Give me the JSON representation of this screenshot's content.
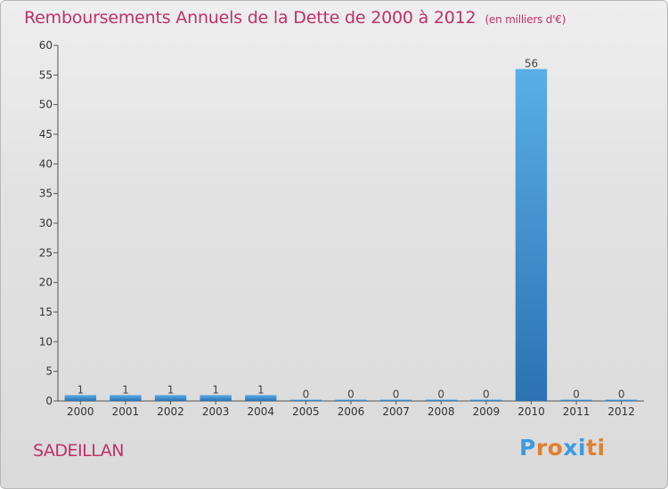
{
  "header": {
    "title": "Remboursements Annuels de la Dette de 2000 à 2012",
    "unit": "(en milliers d'€)"
  },
  "footer": {
    "commune": "SADEILLAN",
    "brand_letters": [
      "P",
      "r",
      "o",
      "x",
      "i",
      "t",
      "i"
    ]
  },
  "colors": {
    "title": "#c0306a",
    "bar_top": "#5aaee8",
    "bar_bottom": "#2a72b2",
    "brand": [
      "#3d9be0",
      "#e08030",
      "#e08030",
      "#3d9be0",
      "#3d9be0",
      "#e08030",
      "#e08030"
    ]
  },
  "chart_data": {
    "type": "bar",
    "categories": [
      "2000",
      "2001",
      "2002",
      "2003",
      "2004",
      "2005",
      "2006",
      "2007",
      "2008",
      "2009",
      "2010",
      "2011",
      "2012"
    ],
    "values": [
      1,
      1,
      1,
      1,
      1,
      0,
      0,
      0,
      0,
      0,
      56,
      0,
      0
    ],
    "data_labels": [
      "1",
      "1",
      "1",
      "1",
      "1",
      "0",
      "0",
      "0",
      "0",
      "0",
      "56",
      "0",
      "0"
    ],
    "yticks": [
      "0",
      "5",
      "10",
      "15",
      "20",
      "25",
      "30",
      "35",
      "40",
      "45",
      "50",
      "55",
      "60"
    ],
    "ylim": [
      0,
      60
    ],
    "ytick_step": 5,
    "grid": false
  }
}
